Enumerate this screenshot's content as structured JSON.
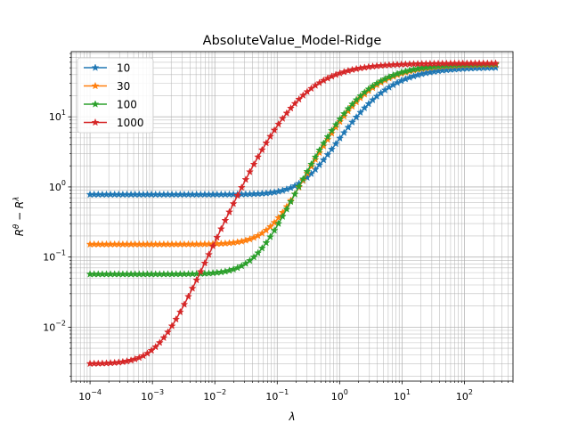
{
  "chart_data": {
    "type": "line",
    "title": "AbsoluteValue_Model-Ridge",
    "xlabel": "λ",
    "ylabel_base": "R",
    "ylabel_sup1": "θ",
    "ylabel_mid": " − R",
    "ylabel_sup2": "λ",
    "xscale": "log",
    "yscale": "log",
    "xlim": [
      5e-05,
      600
    ],
    "ylim": [
      0.0017,
      85
    ],
    "grid": true,
    "legend_position": "top-left",
    "x_ticks": [
      {
        "value": 0.0001,
        "base": "10",
        "exp": "−4"
      },
      {
        "value": 0.001,
        "base": "10",
        "exp": "−3"
      },
      {
        "value": 0.01,
        "base": "10",
        "exp": "−2"
      },
      {
        "value": 0.1,
        "base": "10",
        "exp": "−1"
      },
      {
        "value": 1,
        "base": "10",
        "exp": "0"
      },
      {
        "value": 10,
        "base": "10",
        "exp": "1"
      },
      {
        "value": 100,
        "base": "10",
        "exp": "2"
      }
    ],
    "y_ticks": [
      {
        "value": 0.01,
        "base": "10",
        "exp": "−2"
      },
      {
        "value": 0.1,
        "base": "10",
        "exp": "−1"
      },
      {
        "value": 1,
        "base": "10",
        "exp": "0"
      },
      {
        "value": 10,
        "base": "10",
        "exp": "1"
      }
    ],
    "x_range": {
      "min": 0.0001,
      "max": 316,
      "count": 100
    },
    "series": [
      {
        "name": "10",
        "color": "#1f77b4",
        "plateau": 0.78,
        "knee": 2.5,
        "p_asym": 51
      },
      {
        "name": "30",
        "color": "#ff7f0e",
        "plateau": 0.152,
        "knee": 1.6,
        "p_asym": 56
      },
      {
        "name": "100",
        "color": "#2ca02c",
        "plateau": 0.057,
        "knee": 1.5,
        "p_asym": 57
      },
      {
        "name": "1000",
        "color": "#d62728",
        "plateau": 0.003,
        "knee": 0.18,
        "p_asym": 58
      }
    ],
    "marker": "star"
  }
}
